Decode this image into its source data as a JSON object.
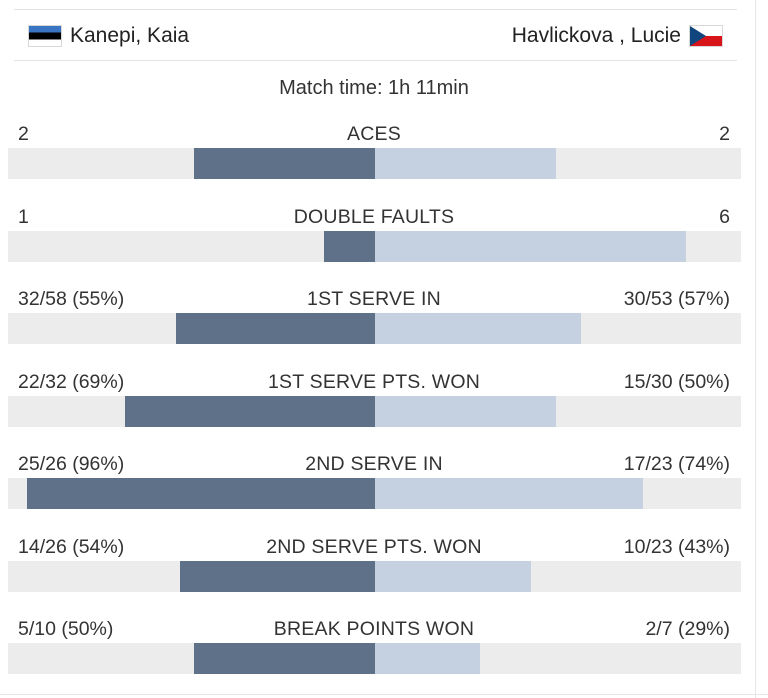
{
  "players": {
    "left": {
      "name": "Kanepi, Kaia",
      "flag": "estonia-flag-icon"
    },
    "right": {
      "name": "Havlickova , Lucie",
      "flag": "czech-flag-icon"
    }
  },
  "match_time": "Match time: 1h 11min",
  "colors": {
    "left_bar": "#5f7188",
    "right_bar": "#c5d1e1",
    "track": "#ececec"
  },
  "stats": [
    {
      "label": "ACES",
      "left": "2",
      "right": "2",
      "left_share": 0.5,
      "right_share": 0.5
    },
    {
      "label": "DOUBLE FAULTS",
      "left": "1",
      "right": "6",
      "left_share": 0.14,
      "right_share": 0.86
    },
    {
      "label": "1ST SERVE IN",
      "left": "32/58 (55%)",
      "right": "30/53 (57%)",
      "left_share": 0.55,
      "right_share": 0.57
    },
    {
      "label": "1ST SERVE PTS. WON",
      "left": "22/32 (69%)",
      "right": "15/30 (50%)",
      "left_share": 0.69,
      "right_share": 0.5
    },
    {
      "label": "2ND SERVE IN",
      "left": "25/26 (96%)",
      "right": "17/23 (74%)",
      "left_share": 0.96,
      "right_share": 0.74
    },
    {
      "label": "2ND SERVE PTS. WON",
      "left": "14/26 (54%)",
      "right": "10/23 (43%)",
      "left_share": 0.54,
      "right_share": 0.43
    },
    {
      "label": "BREAK POINTS WON",
      "left": "5/10 (50%)",
      "right": "2/7 (29%)",
      "left_share": 0.5,
      "right_share": 0.29
    }
  ]
}
